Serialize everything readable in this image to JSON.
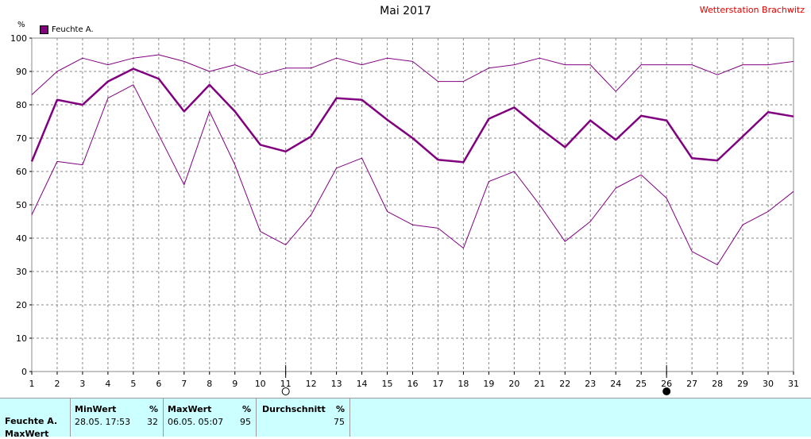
{
  "header": {
    "title": "Mai 2017",
    "station": "Wetterstation Brachwitz",
    "unit": "%",
    "legend_label": "Feuchte A."
  },
  "colors": {
    "series": "#800080",
    "grid": "#888888",
    "station_text": "#e00000",
    "stats_bg": "#ccffff"
  },
  "chart_data": {
    "type": "line",
    "title": "Mai 2017",
    "xlabel": "",
    "ylabel": "%",
    "x": [
      1,
      2,
      3,
      4,
      5,
      6,
      7,
      8,
      9,
      10,
      11,
      12,
      13,
      14,
      15,
      16,
      17,
      18,
      19,
      20,
      21,
      22,
      23,
      24,
      25,
      26,
      27,
      28,
      29,
      30,
      31
    ],
    "xlim": [
      1,
      31
    ],
    "ylim": [
      0,
      100
    ],
    "yticks": [
      0,
      10,
      20,
      30,
      40,
      50,
      60,
      70,
      80,
      90,
      100
    ],
    "grid": true,
    "legend_position": "top-left",
    "series": [
      {
        "name": "Feuchte A.",
        "role": "max",
        "values": [
          83,
          90,
          94,
          92,
          94,
          95,
          93,
          90,
          92,
          89,
          91,
          91,
          94,
          92,
          94,
          93,
          87,
          87,
          91,
          92,
          94,
          92,
          92,
          84,
          92,
          92,
          92,
          89,
          92,
          92,
          93
        ]
      },
      {
        "name": "Feuchte A.",
        "role": "avg",
        "values": [
          63,
          81.5,
          80,
          87,
          90.8,
          87.8,
          78,
          86,
          78,
          68,
          66,
          70.5,
          82,
          81.5,
          75.5,
          70,
          63.5,
          62.8,
          75.8,
          79.2,
          73,
          67.3,
          75.3,
          69.5,
          76.7,
          75.3,
          64,
          63.3,
          70.5,
          77.8,
          76.5
        ]
      },
      {
        "name": "Feuchte A.",
        "role": "min",
        "values": [
          47,
          63,
          62,
          82,
          86,
          71,
          56,
          78,
          62,
          42,
          38,
          47,
          61,
          64,
          48,
          44,
          43,
          37,
          57,
          60,
          50,
          39,
          45,
          55,
          59,
          52,
          36,
          32,
          44,
          48,
          54
        ]
      }
    ],
    "moon_markers": [
      {
        "day": 11,
        "symbol": "full-moon"
      },
      {
        "day": 26,
        "symbol": "new-moon"
      }
    ]
  },
  "stats": {
    "row_label": "Feuchte A.",
    "row_label_2": "MaxWert",
    "min_header": "MinWert",
    "min_unit": "%",
    "min_time": "28.05.  17:53",
    "min_value": "32",
    "max_header": "MaxWert",
    "max_unit": "%",
    "max_time": "06.05.  05:07",
    "max_value": "95",
    "avg_header": "Durchschnitt",
    "avg_unit": "%",
    "avg_value": "75"
  }
}
